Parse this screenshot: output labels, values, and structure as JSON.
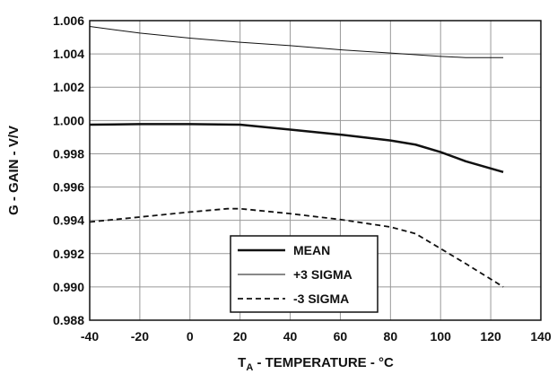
{
  "chart_data": {
    "type": "line",
    "xlabel_main": "T",
    "xlabel_sub": "A",
    "xlabel_rest": " - TEMPERATURE - °C",
    "ylabel": "G - GAIN - V/V",
    "xlim": [
      -40,
      140
    ],
    "ylim": [
      0.988,
      1.006
    ],
    "x_ticks": [
      "-40",
      "-20",
      "0",
      "20",
      "40",
      "60",
      "80",
      "100",
      "120",
      "140"
    ],
    "y_ticks": [
      "0.988",
      "0.990",
      "0.992",
      "0.994",
      "0.996",
      "0.998",
      "1.000",
      "1.002",
      "1.004",
      "1.006"
    ],
    "grid": true,
    "legend_position": "bottom-center",
    "series": [
      {
        "name": "MEAN",
        "style": "thick-solid",
        "color": "#111111",
        "points": [
          [
            -40,
            0.99975
          ],
          [
            -20,
            0.99978
          ],
          [
            0,
            0.99978
          ],
          [
            20,
            0.99975
          ],
          [
            40,
            0.99945
          ],
          [
            60,
            0.99915
          ],
          [
            80,
            0.9988
          ],
          [
            90,
            0.99855
          ],
          [
            100,
            0.9981
          ],
          [
            110,
            0.99755
          ],
          [
            125,
            0.9969
          ]
        ]
      },
      {
        "name": "+3 SIGMA",
        "style": "thin-solid",
        "color": "#111111",
        "points": [
          [
            -40,
            1.00565
          ],
          [
            -20,
            1.00525
          ],
          [
            0,
            1.00495
          ],
          [
            20,
            1.0047
          ],
          [
            40,
            1.0045
          ],
          [
            60,
            1.00425
          ],
          [
            80,
            1.00405
          ],
          [
            100,
            1.00385
          ],
          [
            110,
            1.00378
          ],
          [
            125,
            1.00378
          ]
        ]
      },
      {
        "name": "-3 SIGMA",
        "style": "dashed",
        "color": "#111111",
        "points": [
          [
            -40,
            0.9939
          ],
          [
            -20,
            0.9942
          ],
          [
            0,
            0.9945
          ],
          [
            15,
            0.9947
          ],
          [
            20,
            0.9947
          ],
          [
            40,
            0.9944
          ],
          [
            60,
            0.99405
          ],
          [
            80,
            0.9936
          ],
          [
            90,
            0.9932
          ],
          [
            100,
            0.9923
          ],
          [
            110,
            0.9914
          ],
          [
            125,
            0.99
          ]
        ]
      }
    ]
  }
}
